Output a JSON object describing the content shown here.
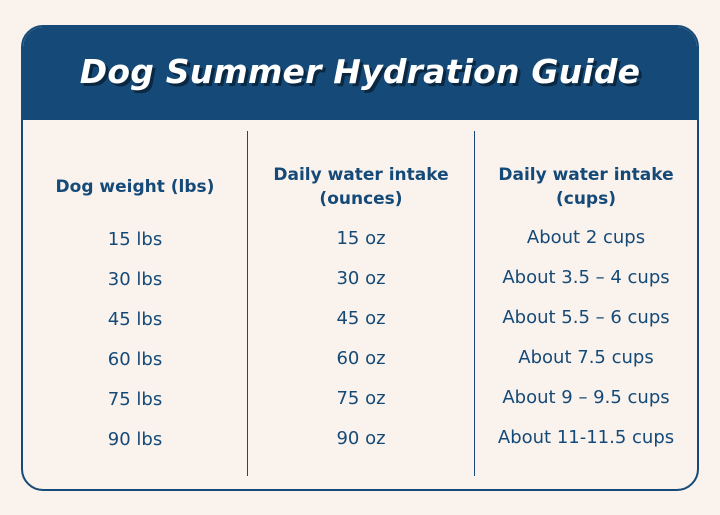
{
  "title": "Dog Summer Hydration Guide",
  "columns": [
    "Dog weight (lbs)",
    "Daily water intake (ounces)",
    "Daily water intake (cups)"
  ],
  "header_lines": {
    "col2_line1": "Daily water intake",
    "col2_line2": "(ounces)",
    "col3_line1": "Daily water intake",
    "col3_line2": "(cups)"
  },
  "rows": [
    {
      "weight": "15 lbs",
      "ounces": "15 oz",
      "cups": "About 2 cups"
    },
    {
      "weight": "30 lbs",
      "ounces": "30 oz",
      "cups": "About 3.5 – 4 cups"
    },
    {
      "weight": "45 lbs",
      "ounces": "45 oz",
      "cups": "About 5.5 – 6 cups"
    },
    {
      "weight": "60 lbs",
      "ounces": "60 oz",
      "cups": "About 7.5 cups"
    },
    {
      "weight": "75 lbs",
      "ounces": "75 oz",
      "cups": "About 9 – 9.5 cups"
    },
    {
      "weight": "90 lbs",
      "ounces": "90 oz",
      "cups": "About 11-11.5 cups"
    }
  ],
  "colors": {
    "navy": "#154a78",
    "background": "#faf2ec",
    "title_text": "#ffffff"
  }
}
